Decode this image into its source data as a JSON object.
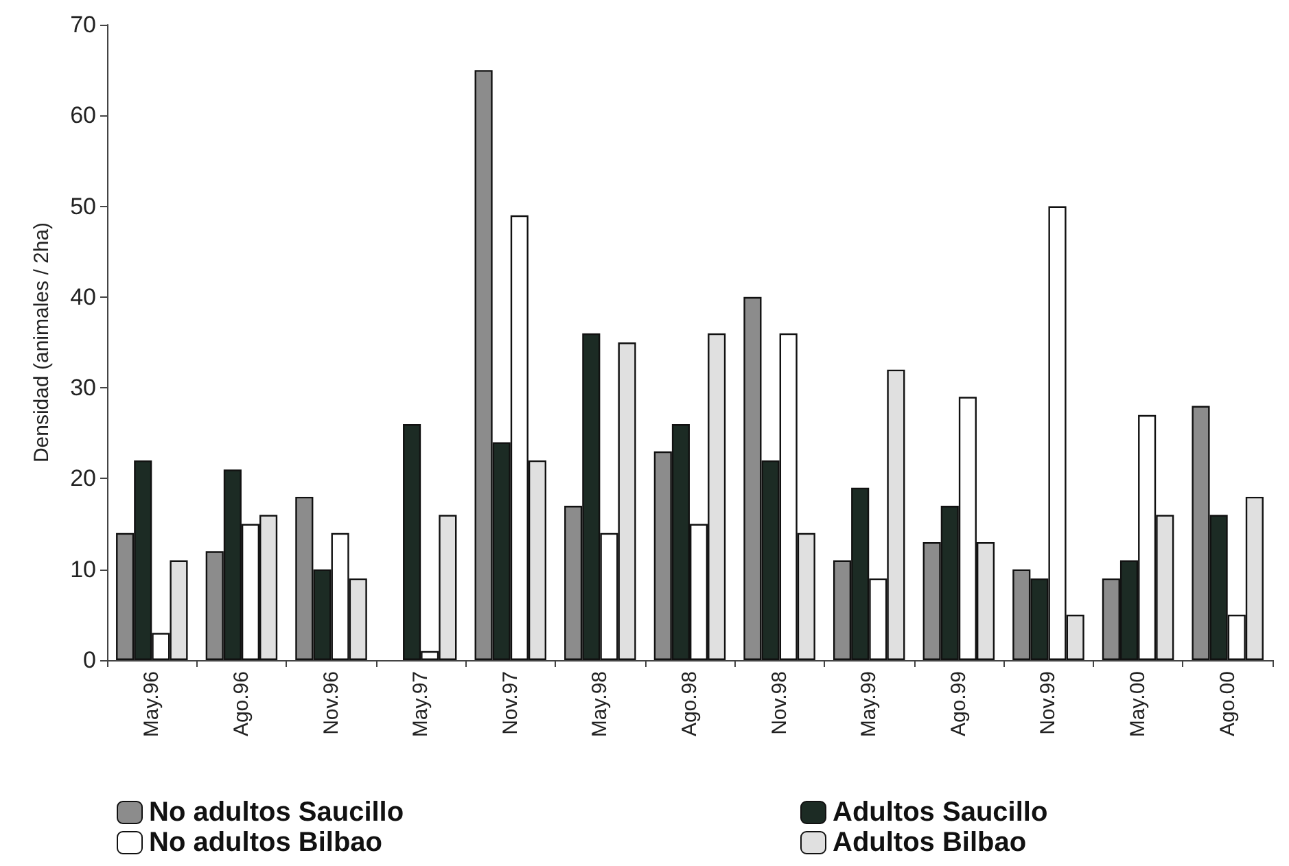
{
  "chart_data": {
    "type": "bar",
    "ylabel": "Densidad (animales / 2ha)",
    "categories": [
      "May.96",
      "Ago.96",
      "Nov.96",
      "May.97",
      "Nov.97",
      "May.98",
      "Ago.98",
      "Nov.98",
      "May.99",
      "Ago.99",
      "Nov.99",
      "May.00",
      "Ago.00"
    ],
    "series": [
      {
        "name": "No adultos Saucillo",
        "color": "#8c8c8c",
        "values": [
          14,
          12,
          18,
          null,
          65,
          17,
          23,
          40,
          11,
          13,
          10,
          9,
          28
        ]
      },
      {
        "name": "Adultos Saucillo",
        "color": "#1c2b24",
        "values": [
          22,
          21,
          10,
          26,
          24,
          36,
          26,
          22,
          19,
          17,
          9,
          11,
          16
        ]
      },
      {
        "name": "No adultos Bilbao",
        "color": "#ffffff",
        "values": [
          3,
          15,
          14,
          1,
          49,
          14,
          15,
          36,
          9,
          29,
          50,
          27,
          5
        ]
      },
      {
        "name": "Adultos Bilbao",
        "color": "#e0e0e0",
        "values": [
          11,
          16,
          9,
          16,
          22,
          35,
          36,
          14,
          32,
          13,
          5,
          16,
          18
        ]
      }
    ],
    "ylim": [
      0,
      70
    ],
    "yticks": [
      0,
      10,
      20,
      30,
      40,
      50,
      60,
      70
    ],
    "grid": false,
    "legend": "bottom"
  }
}
